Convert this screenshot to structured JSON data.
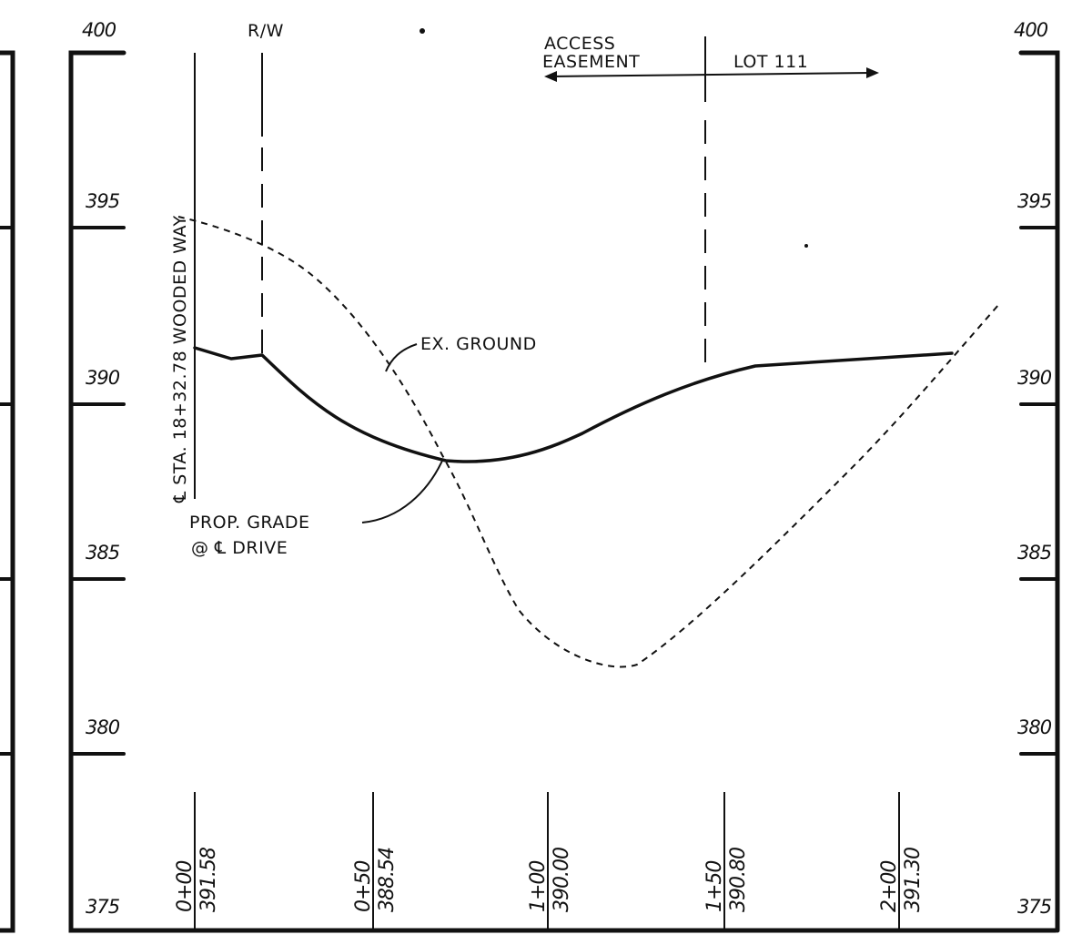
{
  "elevation_labels_left": [
    "400",
    "395",
    "390",
    "385",
    "380",
    "375"
  ],
  "elevation_labels_right": [
    "400",
    "395",
    "390",
    "385",
    "380",
    "375"
  ],
  "annotations": {
    "rw": "R/W",
    "access_easement_line1": "ACCESS",
    "access_easement_line2": "EASEMENT",
    "lot": "LOT 111",
    "centerline_station": "℄ STA. 18+32.78 WOODED WAY",
    "ex_ground": "EX. GROUND",
    "prop_grade_line1": "PROP. GRADE",
    "prop_grade_line2": "@ ℄ DRIVE"
  },
  "stations": [
    {
      "station": "0+00",
      "elevation": "391.58"
    },
    {
      "station": "0+50",
      "elevation": "388.54"
    },
    {
      "station": "1+00",
      "elevation": "390.00"
    },
    {
      "station": "1+50",
      "elevation": "390.80"
    },
    {
      "station": "2+00",
      "elevation": "391.30"
    }
  ],
  "chart_data": {
    "type": "line",
    "xlabel": "",
    "ylabel": "",
    "x_ticks": [
      "0+00",
      "0+50",
      "1+00",
      "1+50",
      "2+00"
    ],
    "ylim": [
      375,
      400
    ],
    "series": [
      {
        "name": "PROP. GRADE @ ℄ DRIVE",
        "style": "solid",
        "values": [
          391.58,
          388.54,
          390.0,
          390.8,
          391.3
        ]
      },
      {
        "name": "EX. GROUND",
        "style": "dashed"
      }
    ]
  }
}
